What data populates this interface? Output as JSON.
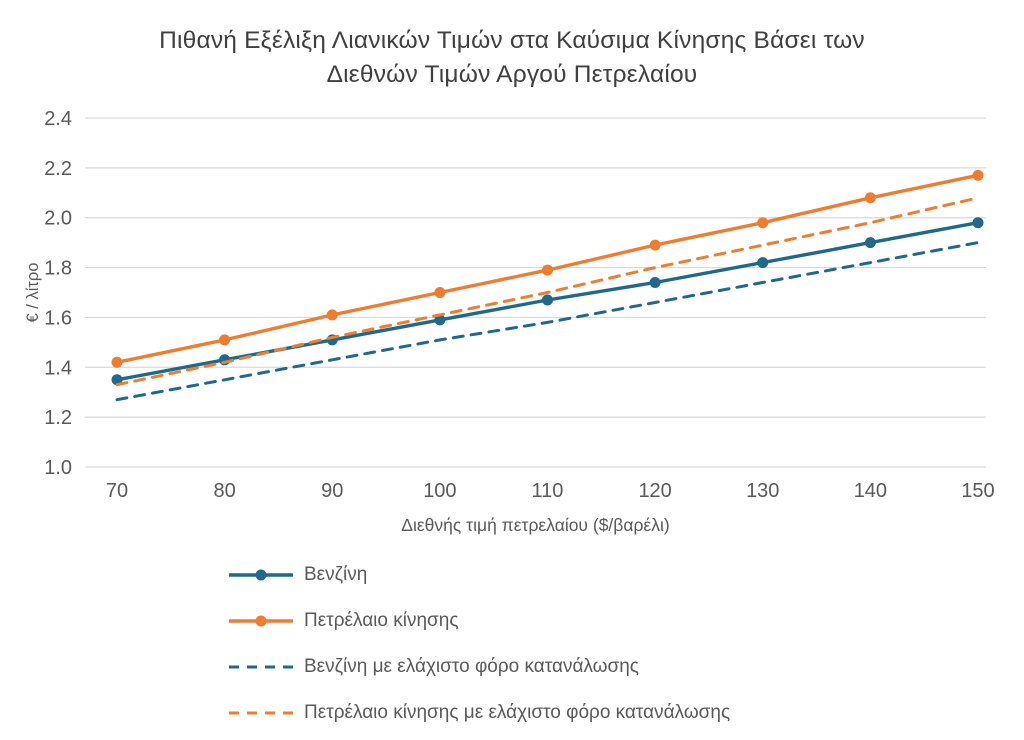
{
  "title_lines": [
    "Πιθανή Εξέλιξη Λιανικών Τιμών στα Καύσιμα Κίνησης Βάσει των",
    "Διεθνών Τιμών Αργού Πετρελαίου"
  ],
  "chart_data": {
    "type": "line",
    "title": "Πιθανή Εξέλιξη Λιανικών Τιμών στα Καύσιμα Κίνησης Βάσει των Διεθνών Τιμών Αργού Πετρελαίου",
    "xlabel": "Διεθνής τιμή πετρελαίου ($/βαρέλι)",
    "ylabel": "€ / λίτρο",
    "x": [
      70,
      80,
      90,
      100,
      110,
      120,
      130,
      140,
      150
    ],
    "xlim": [
      70,
      150
    ],
    "ylim": [
      1.0,
      2.4
    ],
    "yticks": [
      1.0,
      1.2,
      1.4,
      1.6,
      1.8,
      2.0,
      2.2,
      2.4
    ],
    "grid": true,
    "legend_position": "bottom-left",
    "colors": {
      "teal": "#20698a",
      "orange": "#ee7d31",
      "grid": "#d9d9d9",
      "axis_text": "#595959",
      "title_text": "#3f3f3f"
    },
    "series": [
      {
        "key": "gasoline",
        "name": "Βενζίνη",
        "color": "#20698a",
        "dash": false,
        "markers": true,
        "values": [
          1.35,
          1.43,
          1.51,
          1.59,
          1.67,
          1.74,
          1.82,
          1.9,
          1.98
        ]
      },
      {
        "key": "diesel",
        "name": "Πετρέλαιο κίνησης",
        "color": "#ee7d31",
        "dash": false,
        "markers": true,
        "values": [
          1.42,
          1.51,
          1.61,
          1.7,
          1.79,
          1.89,
          1.98,
          2.08,
          2.17
        ]
      },
      {
        "key": "gasoline-min-excise-tax",
        "name": "Βενζίνη με ελάχιστο φόρο κατανάλωσης",
        "color": "#20698a",
        "dash": true,
        "markers": false,
        "values": [
          1.27,
          1.35,
          1.43,
          1.51,
          1.58,
          1.66,
          1.74,
          1.82,
          1.9
        ]
      },
      {
        "key": "diesel-min-excise-tax",
        "name": "Πετρέλαιο κίνησης με ελάχιστο φόρο κατανάλωσης",
        "color": "#ee7d31",
        "dash": true,
        "markers": false,
        "values": [
          1.33,
          1.42,
          1.52,
          1.61,
          1.7,
          1.8,
          1.89,
          1.98,
          2.08
        ]
      }
    ]
  }
}
